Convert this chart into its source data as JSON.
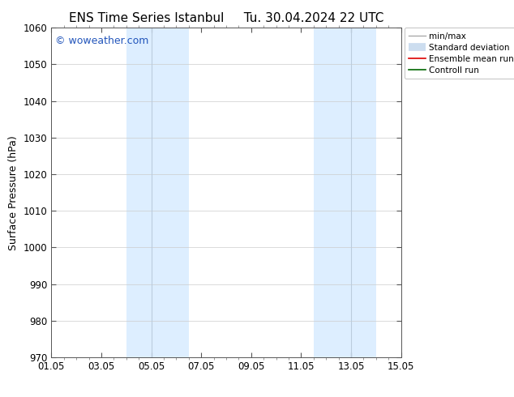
{
  "title": "ENS Time Series Istanbul",
  "subtitle": "Tu. 30.04.2024 22 UTC",
  "ylabel": "Surface Pressure (hPa)",
  "ylim": [
    970,
    1060
  ],
  "yticks": [
    970,
    980,
    990,
    1000,
    1010,
    1020,
    1030,
    1040,
    1050,
    1060
  ],
  "xticks": [
    "01.05",
    "03.05",
    "05.05",
    "07.05",
    "09.05",
    "11.05",
    "13.05",
    "15.05"
  ],
  "xtick_positions": [
    0,
    2,
    4,
    6,
    8,
    10,
    12,
    14
  ],
  "watermark": "© woweather.com",
  "watermark_color": "#2255bb",
  "bg_color": "#ffffff",
  "plot_bg_color": "#ffffff",
  "shaded_bands": [
    {
      "x_start": 3.0,
      "x_end": 5.5,
      "color": "#ddeeff"
    },
    {
      "x_start": 10.5,
      "x_end": 13.0,
      "color": "#ddeeff"
    }
  ],
  "band_divider_color": "#bbccdd",
  "legend_items": [
    {
      "label": "min/max",
      "color": "#aaaaaa",
      "lw": 1.0,
      "ls": "-"
    },
    {
      "label": "Standard deviation",
      "color": "#ccddef",
      "lw": 6,
      "ls": "-"
    },
    {
      "label": "Ensemble mean run",
      "color": "#dd0000",
      "lw": 1.2,
      "ls": "-"
    },
    {
      "label": "Controll run",
      "color": "#006600",
      "lw": 1.2,
      "ls": "-"
    }
  ],
  "title_fontsize": 11,
  "axis_fontsize": 9,
  "tick_fontsize": 8.5,
  "legend_fontsize": 7.5,
  "watermark_fontsize": 9
}
